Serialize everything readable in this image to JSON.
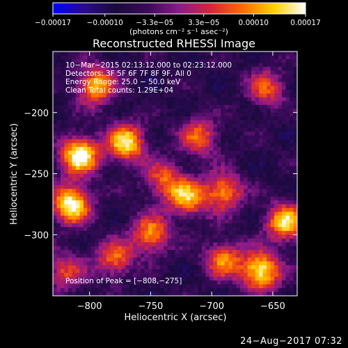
{
  "chart_data": {
    "type": "heatmap",
    "title": "Reconstructed RHESSI Image",
    "xlabel": "Heliocentric X (arcsec)",
    "ylabel": "Heliocentric Y (arcsec)",
    "xlim": [
      -830,
      -630
    ],
    "ylim": [
      -350,
      -150
    ],
    "x_ticks": [
      {
        "value": -800,
        "label": "−800"
      },
      {
        "value": -750,
        "label": "−750"
      },
      {
        "value": -700,
        "label": "−700"
      },
      {
        "value": -650,
        "label": "−650"
      }
    ],
    "y_ticks": [
      {
        "value": -200,
        "label": "−200"
      },
      {
        "value": -250,
        "label": "−250"
      },
      {
        "value": -300,
        "label": "−300"
      }
    ],
    "colorbar": {
      "min": -0.00017,
      "max": 0.00017,
      "unit_label": "(photons cm⁻² s⁻¹ asec⁻²)",
      "tick_labels": [
        {
          "value": -0.00017,
          "label": "−0.00017"
        },
        {
          "value": -0.0001,
          "label": "−0.00010"
        },
        {
          "value": -3.3e-05,
          "label": "−3.3e−05"
        },
        {
          "value": 3.3e-05,
          "label": "3.3e−05"
        },
        {
          "value": 0.0001,
          "label": "0.00010"
        },
        {
          "value": 0.00017,
          "label": "0.00017"
        }
      ],
      "colors": [
        "#0000ff",
        "#2a0a8c",
        "#1a0a3c",
        "#3a0a5a",
        "#8b1a8a",
        "#d4263a",
        "#ff6a00",
        "#ffd000",
        "#ffffff"
      ]
    },
    "annotations": [
      "10−Mar−2015 02:13:12.000 to 02:23:12.000",
      "Detectors: 3F 5F 6F 7F 8F 9F, All 0",
      "Energy Range: 25.0 − 50.0 keV",
      "Clean    Total counts: 1.29E+04"
    ],
    "peak_label": "Position of Peak = [−808,−275]",
    "sources": [
      {
        "x": -770,
        "y": -225,
        "intensity": 0.9
      },
      {
        "x": -808,
        "y": -235,
        "intensity": 1.0
      },
      {
        "x": -795,
        "y": -178,
        "intensity": 0.8
      },
      {
        "x": -720,
        "y": -270,
        "intensity": 0.75
      },
      {
        "x": -690,
        "y": -265,
        "intensity": 0.7
      },
      {
        "x": -815,
        "y": -275,
        "intensity": 1.0
      },
      {
        "x": -660,
        "y": -330,
        "intensity": 0.95
      },
      {
        "x": -750,
        "y": -300,
        "intensity": 0.7
      },
      {
        "x": -640,
        "y": -290,
        "intensity": 0.85
      },
      {
        "x": -710,
        "y": -220,
        "intensity": 0.6
      },
      {
        "x": -655,
        "y": -180,
        "intensity": 0.55
      },
      {
        "x": -780,
        "y": -320,
        "intensity": 0.6
      },
      {
        "x": -690,
        "y": -320,
        "intensity": 0.65
      },
      {
        "x": -740,
        "y": -255,
        "intensity": 0.55
      },
      {
        "x": -820,
        "y": -330,
        "intensity": 0.5
      }
    ],
    "grid": false
  },
  "timestamp": "24−Aug−2017 07:32"
}
